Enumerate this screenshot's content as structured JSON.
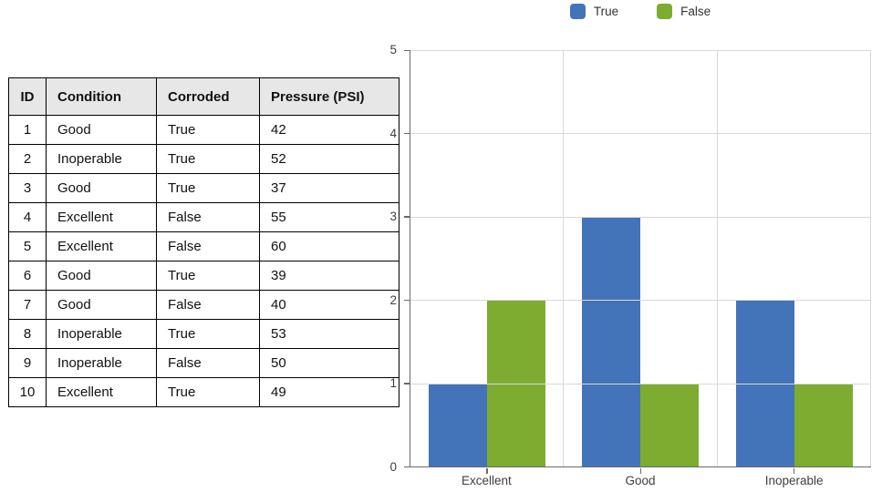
{
  "table": {
    "columns": [
      "ID",
      "Condition",
      "Corroded",
      "Pressure (PSI)"
    ],
    "rows": [
      [
        "1",
        "Good",
        "True",
        "42"
      ],
      [
        "2",
        "Inoperable",
        "True",
        "52"
      ],
      [
        "3",
        "Good",
        "True",
        "37"
      ],
      [
        "4",
        "Excellent",
        "False",
        "55"
      ],
      [
        "5",
        "Excellent",
        "False",
        "60"
      ],
      [
        "6",
        "Good",
        "True",
        "39"
      ],
      [
        "7",
        "Good",
        "False",
        "40"
      ],
      [
        "8",
        "Inoperable",
        "True",
        "53"
      ],
      [
        "9",
        "Inoperable",
        "False",
        "50"
      ],
      [
        "10",
        "Excellent",
        "True",
        "49"
      ]
    ]
  },
  "chart_data": {
    "type": "bar",
    "title": "",
    "categories": [
      "Excellent",
      "Good",
      "Inoperable"
    ],
    "series": [
      {
        "name": "True",
        "color": "#4373b9",
        "values": [
          1,
          3,
          2
        ]
      },
      {
        "name": "False",
        "color": "#7eac31",
        "values": [
          2,
          1,
          1
        ]
      }
    ],
    "ylim": [
      0,
      5
    ],
    "ytick_step": 1,
    "grid": true,
    "legend_position": "top",
    "xlabel": "",
    "ylabel": ""
  }
}
